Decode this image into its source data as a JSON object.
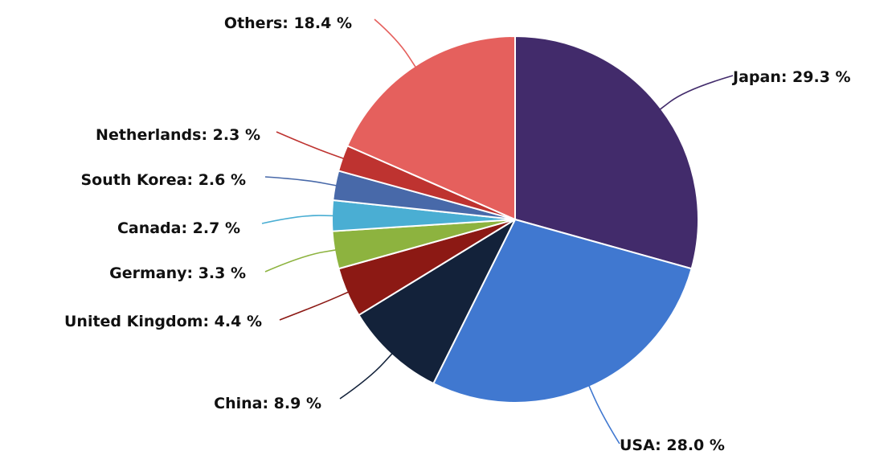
{
  "chart_data": {
    "type": "pie",
    "start_angle_deg": 0,
    "direction": "clockwise",
    "legend": "none",
    "slices": [
      {
        "name": "Japan",
        "value": 29.3,
        "label": "Japan: 29.3 %",
        "color": "#422b6b"
      },
      {
        "name": "USA",
        "value": 28.0,
        "label": "USA: 28.0 %",
        "color": "#4078d0"
      },
      {
        "name": "China",
        "value": 8.9,
        "label": "China: 8.9 %",
        "color": "#13223a"
      },
      {
        "name": "United Kingdom",
        "value": 4.4,
        "label": "United Kingdom: 4.4 %",
        "color": "#8c1914"
      },
      {
        "name": "Germany",
        "value": 3.3,
        "label": "Germany: 3.3 %",
        "color": "#8db33f"
      },
      {
        "name": "Canada",
        "value": 2.7,
        "label": "Canada: 2.7 %",
        "color": "#4aaed3"
      },
      {
        "name": "South Korea",
        "value": 2.6,
        "label": "South Korea: 2.6 %",
        "color": "#4869a9"
      },
      {
        "name": "Netherlands",
        "value": 2.3,
        "label": "Netherlands: 2.3 %",
        "color": "#be3330"
      },
      {
        "name": "Others",
        "value": 18.4,
        "label": "Others: 18.4 %",
        "color": "#e5605d"
      }
    ]
  }
}
